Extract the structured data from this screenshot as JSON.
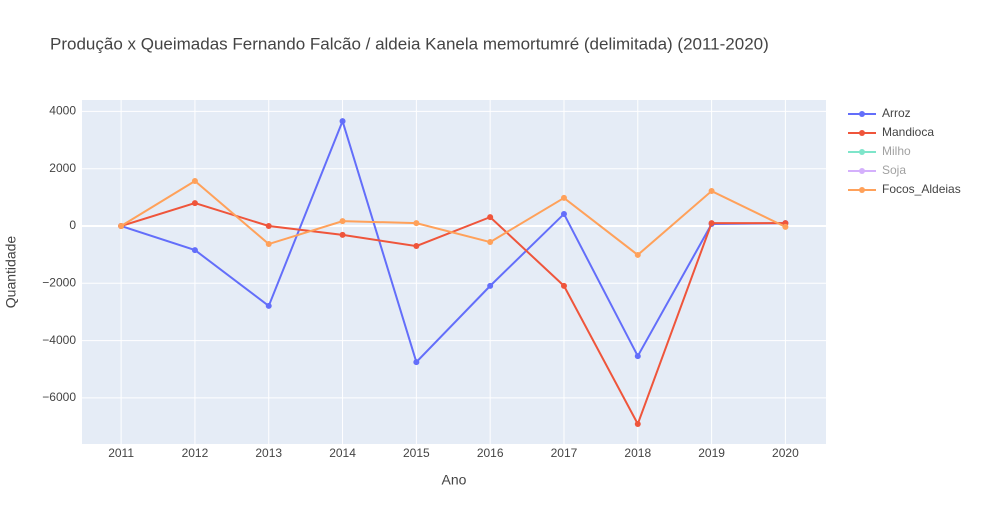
{
  "chart_data": {
    "type": "line",
    "title": "Produção x Queimadas Fernando Falcão / aldeia Kanela memortumré (delimitada) (2011-2020)",
    "xlabel": "Ano",
    "ylabel": "Quantidade",
    "x": [
      2011,
      2012,
      2013,
      2014,
      2015,
      2016,
      2017,
      2018,
      2019,
      2020
    ],
    "series": [
      {
        "name": "Arroz",
        "color": "#636efa",
        "visible": true,
        "values": [
          0,
          -840,
          -2790,
          3660,
          -4750,
          -2090,
          420,
          -4540,
          70,
          100
        ]
      },
      {
        "name": "Mandioca",
        "color": "#EF553B",
        "visible": true,
        "values": [
          0,
          800,
          0,
          -310,
          -700,
          310,
          -2090,
          -6910,
          100,
          100
        ]
      },
      {
        "name": "Milho",
        "color": "#00cc96",
        "visible": false,
        "values": [
          null,
          null,
          null,
          null,
          null,
          null,
          null,
          null,
          null,
          null
        ]
      },
      {
        "name": "Soja",
        "color": "#ab63fa",
        "visible": false,
        "values": [
          null,
          null,
          null,
          null,
          null,
          null,
          null,
          null,
          null,
          null
        ]
      },
      {
        "name": "Focos_Aldeias",
        "color": "#FFA15A",
        "visible": true,
        "values": [
          0,
          1570,
          -630,
          170,
          100,
          -560,
          980,
          -1010,
          1220,
          -30
        ]
      }
    ],
    "xlim": [
      2010.47,
      2020.55
    ],
    "xticks": [
      2011,
      2012,
      2013,
      2014,
      2015,
      2016,
      2017,
      2018,
      2019,
      2020
    ],
    "ylim": [
      -7609,
      4398
    ],
    "yticks": [
      {
        "value": -6000,
        "label": "−6000"
      },
      {
        "value": -4000,
        "label": "−4000"
      },
      {
        "value": -2000,
        "label": "−2000"
      },
      0,
      2000,
      4000
    ],
    "grid": true,
    "legend": "right"
  }
}
